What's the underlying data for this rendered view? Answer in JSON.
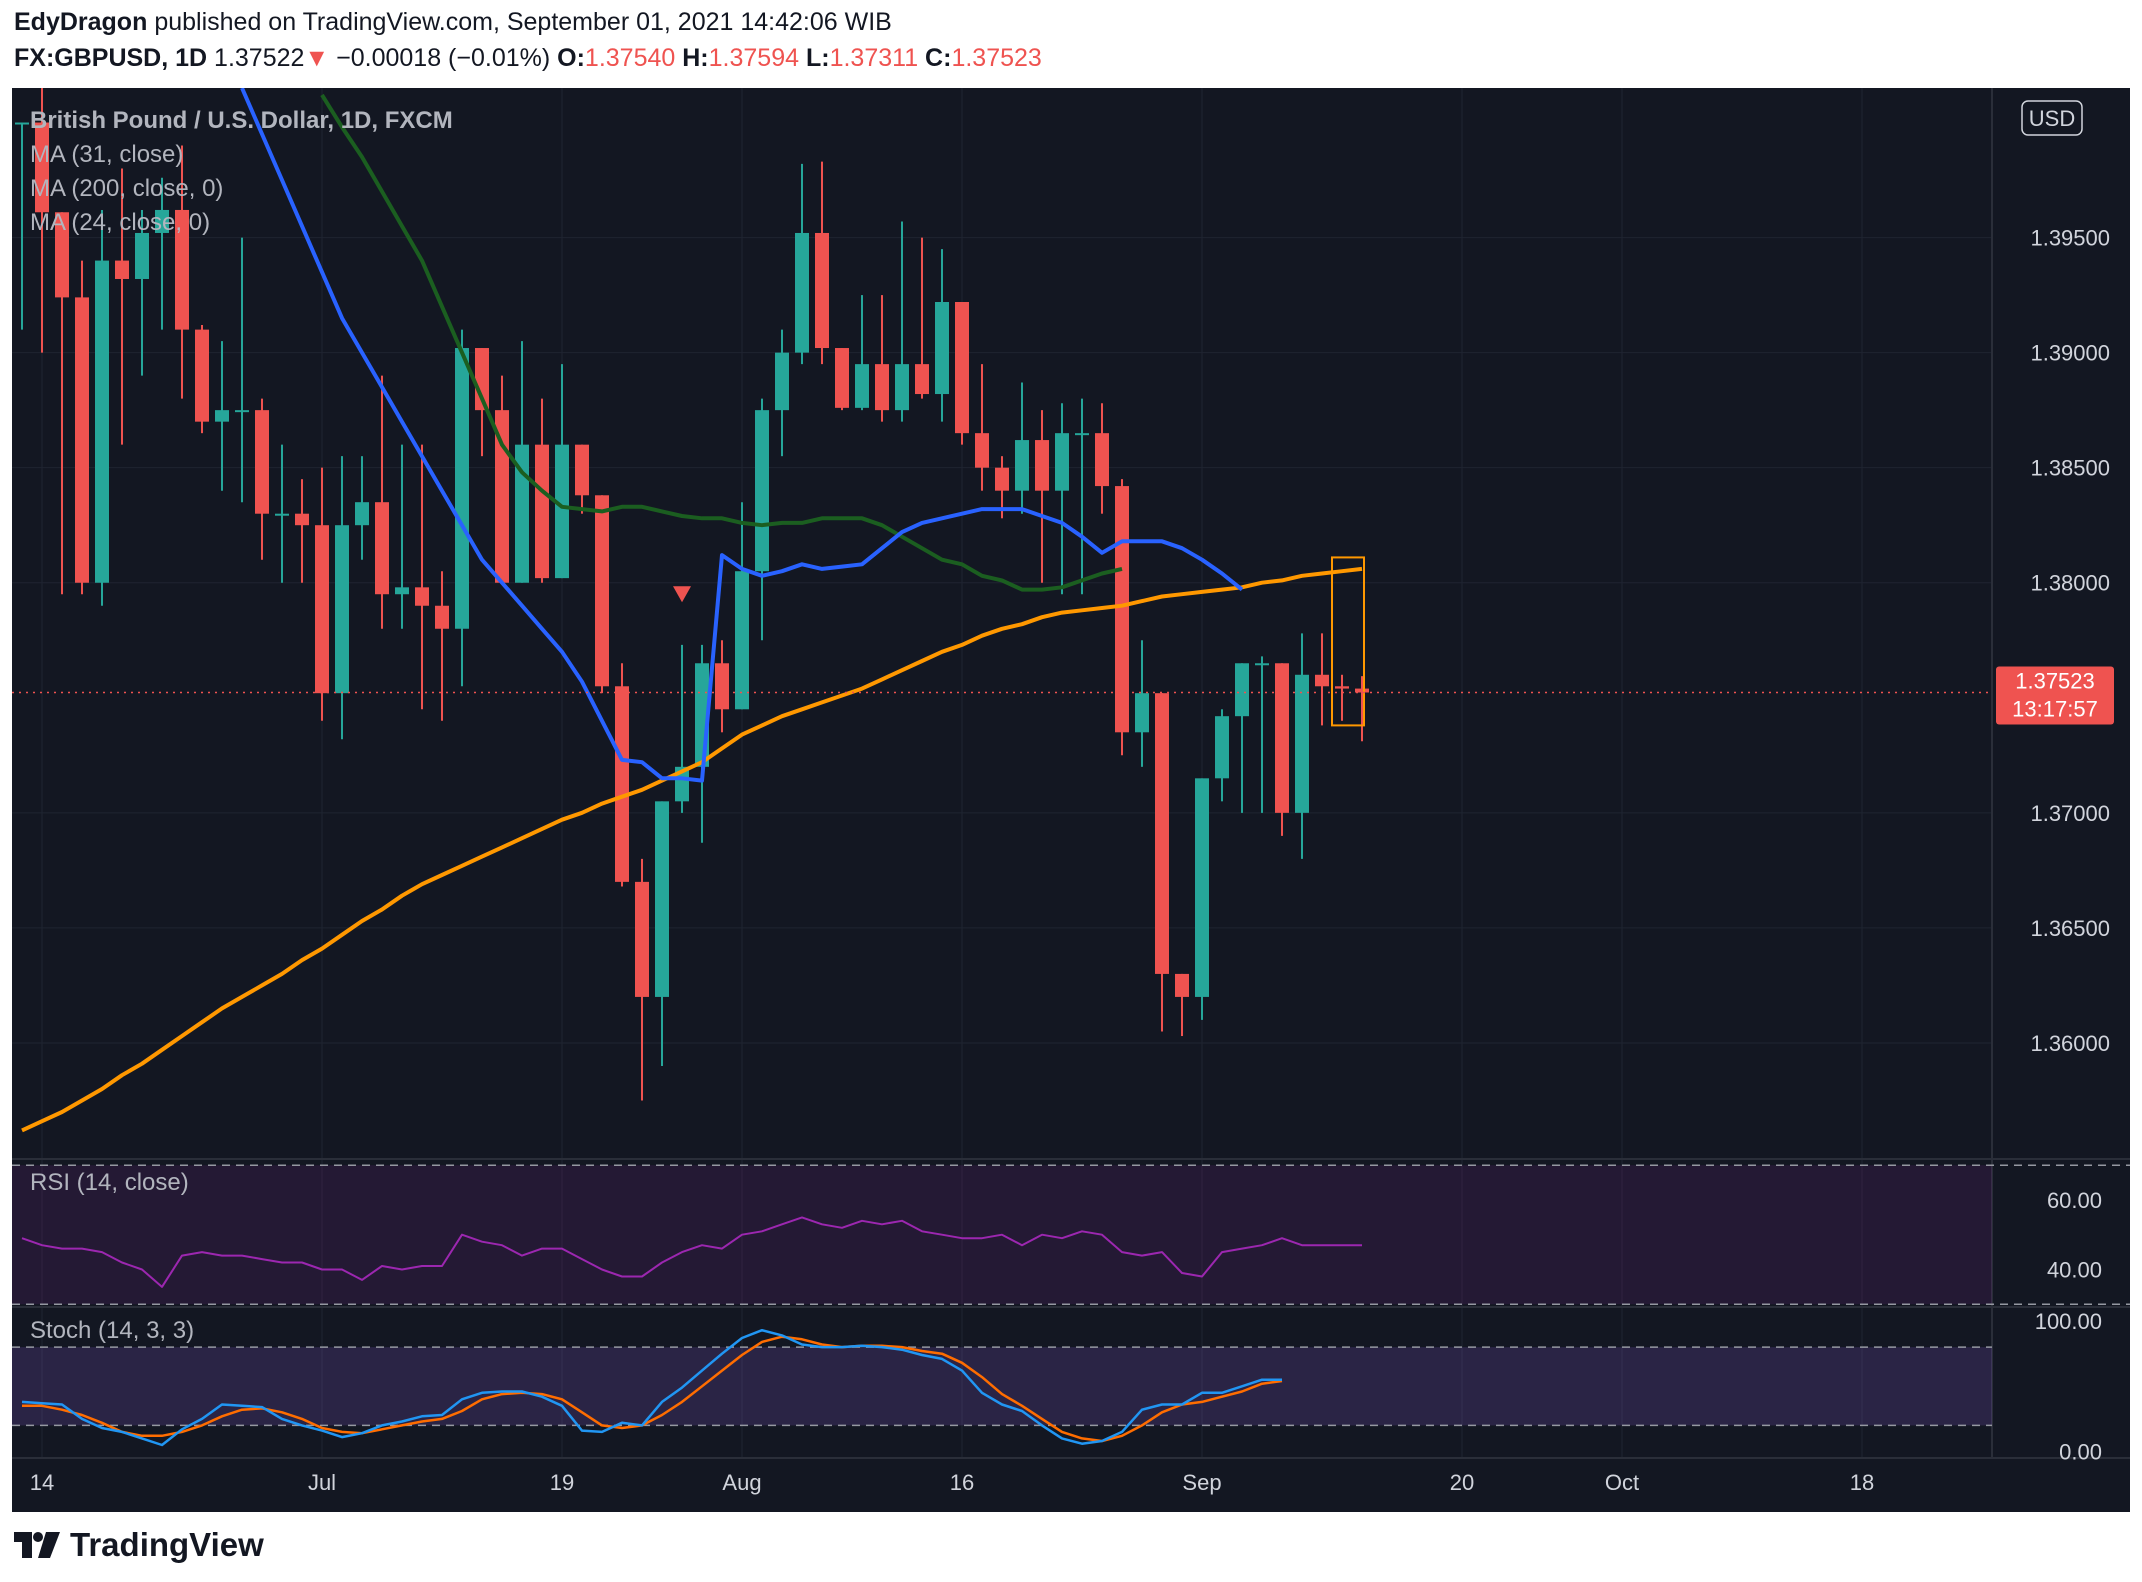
{
  "header": {
    "author": "EdyDragon",
    "published_text": "published on TradingView.com, September 01, 2021 14:42:06 WIB",
    "symbol": "FX:GBPUSD, 1D",
    "last_price": "1.37522",
    "change_arrow": "▼",
    "change": "−0.00018 (−0.01%)",
    "o_label": "O:",
    "o_value": "1.37540",
    "h_label": "H:",
    "h_value": "1.37594",
    "l_label": "L:",
    "l_value": "1.37311",
    "c_label": "C:",
    "c_value": "1.37523"
  },
  "colors": {
    "background": "#131722",
    "up": "#26a69a",
    "down": "#ef5350",
    "ma_blue": "#2962ff",
    "ma_green": "#1b5e20",
    "ma_orange": "#ff9800",
    "rsi": "#9c27b0",
    "stoch_k": "#2196f3",
    "stoch_d": "#ff6d00"
  },
  "footer": {
    "brand": "TradingView"
  },
  "chart_data": [
    {
      "type": "candlestick",
      "legend": [
        "British Pound / U.S. Dollar, 1D, FXCM",
        "MA (31, close)",
        "MA (200, close, 0)",
        "MA (24, close, 0)"
      ],
      "currency_label": "USD",
      "ylim": [
        1.355,
        1.4015
      ],
      "yticks": [
        "1.39500",
        "1.39000",
        "1.38500",
        "1.38000",
        "1.37000",
        "1.36500",
        "1.36000"
      ],
      "x_tick_labels": [
        "14",
        "Jul",
        "19",
        "Aug",
        "16",
        "Sep",
        "20",
        "Oct",
        "18"
      ],
      "x_tick_bar_index": [
        1,
        15,
        27,
        36,
        47,
        59,
        72,
        80,
        92
      ],
      "x_range_bars": [
        -0.5,
        98.5
      ],
      "last_price_label": "1.37523",
      "countdown": "13:17:57",
      "candles": [
        {
          "o": 1.4,
          "h": 1.4,
          "l": 1.391,
          "c": 1.4
        },
        {
          "o": 1.4,
          "h": 1.402,
          "l": 1.39,
          "c": 1.3961
        },
        {
          "o": 1.3961,
          "h": 1.3961,
          "l": 1.3795,
          "c": 1.3924
        },
        {
          "o": 1.3924,
          "h": 1.394,
          "l": 1.3795,
          "c": 1.38
        },
        {
          "o": 1.38,
          "h": 1.3962,
          "l": 1.379,
          "c": 1.394
        },
        {
          "o": 1.394,
          "h": 1.398,
          "l": 1.386,
          "c": 1.3932
        },
        {
          "o": 1.3932,
          "h": 1.3962,
          "l": 1.389,
          "c": 1.3952
        },
        {
          "o": 1.3952,
          "h": 1.3976,
          "l": 1.391,
          "c": 1.3962
        },
        {
          "o": 1.3962,
          "h": 1.399,
          "l": 1.388,
          "c": 1.391
        },
        {
          "o": 1.391,
          "h": 1.3912,
          "l": 1.3865,
          "c": 1.387
        },
        {
          "o": 1.387,
          "h": 1.3905,
          "l": 1.384,
          "c": 1.3875
        },
        {
          "o": 1.3875,
          "h": 1.395,
          "l": 1.3835,
          "c": 1.3875
        },
        {
          "o": 1.3875,
          "h": 1.388,
          "l": 1.381,
          "c": 1.383
        },
        {
          "o": 1.383,
          "h": 1.386,
          "l": 1.38,
          "c": 1.383
        },
        {
          "o": 1.383,
          "h": 1.3845,
          "l": 1.38,
          "c": 1.3825
        },
        {
          "o": 1.3825,
          "h": 1.385,
          "l": 1.374,
          "c": 1.3752
        },
        {
          "o": 1.3752,
          "h": 1.3855,
          "l": 1.3732,
          "c": 1.3825
        },
        {
          "o": 1.3825,
          "h": 1.3855,
          "l": 1.381,
          "c": 1.3835
        },
        {
          "o": 1.3835,
          "h": 1.389,
          "l": 1.378,
          "c": 1.3795
        },
        {
          "o": 1.3795,
          "h": 1.386,
          "l": 1.378,
          "c": 1.3798
        },
        {
          "o": 1.3798,
          "h": 1.386,
          "l": 1.3745,
          "c": 1.379
        },
        {
          "o": 1.379,
          "h": 1.3805,
          "l": 1.374,
          "c": 1.378
        },
        {
          "o": 1.378,
          "h": 1.391,
          "l": 1.3755,
          "c": 1.3902
        },
        {
          "o": 1.3902,
          "h": 1.3902,
          "l": 1.3855,
          "c": 1.3875
        },
        {
          "o": 1.3875,
          "h": 1.389,
          "l": 1.38,
          "c": 1.38
        },
        {
          "o": 1.38,
          "h": 1.3905,
          "l": 1.38,
          "c": 1.386
        },
        {
          "o": 1.386,
          "h": 1.388,
          "l": 1.38,
          "c": 1.3802
        },
        {
          "o": 1.3802,
          "h": 1.3895,
          "l": 1.3802,
          "c": 1.386
        },
        {
          "o": 1.386,
          "h": 1.386,
          "l": 1.383,
          "c": 1.3838
        },
        {
          "o": 1.3838,
          "h": 1.3838,
          "l": 1.3752,
          "c": 1.3755
        },
        {
          "o": 1.3755,
          "h": 1.3765,
          "l": 1.3668,
          "c": 1.367
        },
        {
          "o": 1.367,
          "h": 1.368,
          "l": 1.3575,
          "c": 1.362
        },
        {
          "o": 1.362,
          "h": 1.3705,
          "l": 1.359,
          "c": 1.3705
        },
        {
          "o": 1.3705,
          "h": 1.3773,
          "l": 1.37,
          "c": 1.372
        },
        {
          "o": 1.372,
          "h": 1.3773,
          "l": 1.3687,
          "c": 1.3765
        },
        {
          "o": 1.3765,
          "h": 1.3775,
          "l": 1.3735,
          "c": 1.3745
        },
        {
          "o": 1.3745,
          "h": 1.3835,
          "l": 1.3745,
          "c": 1.3805
        },
        {
          "o": 1.3805,
          "h": 1.388,
          "l": 1.3775,
          "c": 1.3875
        },
        {
          "o": 1.3875,
          "h": 1.391,
          "l": 1.3855,
          "c": 1.39
        },
        {
          "o": 1.39,
          "h": 1.3982,
          "l": 1.3895,
          "c": 1.3952
        },
        {
          "o": 1.3952,
          "h": 1.3983,
          "l": 1.3895,
          "c": 1.3902
        },
        {
          "o": 1.3902,
          "h": 1.3902,
          "l": 1.3875,
          "c": 1.3876
        },
        {
          "o": 1.3876,
          "h": 1.3925,
          "l": 1.3875,
          "c": 1.3895
        },
        {
          "o": 1.3895,
          "h": 1.3925,
          "l": 1.387,
          "c": 1.3875
        },
        {
          "o": 1.3875,
          "h": 1.3957,
          "l": 1.387,
          "c": 1.3895
        },
        {
          "o": 1.3895,
          "h": 1.395,
          "l": 1.388,
          "c": 1.3882
        },
        {
          "o": 1.3882,
          "h": 1.3945,
          "l": 1.387,
          "c": 1.3922
        },
        {
          "o": 1.3922,
          "h": 1.3922,
          "l": 1.386,
          "c": 1.3865
        },
        {
          "o": 1.3865,
          "h": 1.3895,
          "l": 1.384,
          "c": 1.385
        },
        {
          "o": 1.385,
          "h": 1.3855,
          "l": 1.3828,
          "c": 1.384
        },
        {
          "o": 1.384,
          "h": 1.3887,
          "l": 1.383,
          "c": 1.3862
        },
        {
          "o": 1.3862,
          "h": 1.3875,
          "l": 1.38,
          "c": 1.384
        },
        {
          "o": 1.384,
          "h": 1.3878,
          "l": 1.3795,
          "c": 1.3865
        },
        {
          "o": 1.3865,
          "h": 1.388,
          "l": 1.3795,
          "c": 1.3865
        },
        {
          "o": 1.3865,
          "h": 1.3878,
          "l": 1.383,
          "c": 1.3842
        },
        {
          "o": 1.3842,
          "h": 1.3845,
          "l": 1.3725,
          "c": 1.3735
        },
        {
          "o": 1.3735,
          "h": 1.3775,
          "l": 1.372,
          "c": 1.3752
        },
        {
          "o": 1.3752,
          "h": 1.3752,
          "l": 1.3605,
          "c": 1.363
        },
        {
          "o": 1.363,
          "h": 1.363,
          "l": 1.3603,
          "c": 1.362
        },
        {
          "o": 1.362,
          "h": 1.3715,
          "l": 1.361,
          "c": 1.3715
        },
        {
          "o": 1.3715,
          "h": 1.3745,
          "l": 1.3705,
          "c": 1.3742
        },
        {
          "o": 1.3742,
          "h": 1.3765,
          "l": 1.37,
          "c": 1.3765
        },
        {
          "o": 1.3765,
          "h": 1.3768,
          "l": 1.37,
          "c": 1.3765
        },
        {
          "o": 1.3765,
          "h": 1.3765,
          "l": 1.369,
          "c": 1.37
        },
        {
          "o": 1.37,
          "h": 1.3778,
          "l": 1.368,
          "c": 1.376
        },
        {
          "o": 1.376,
          "h": 1.3778,
          "l": 1.3738,
          "c": 1.3755
        },
        {
          "o": 1.3755,
          "h": 1.376,
          "l": 1.374,
          "c": 1.3754
        },
        {
          "o": 1.3754,
          "h": 1.37594,
          "l": 1.37311,
          "c": 1.37523
        }
      ],
      "ma_31": {
        "start_index": 11,
        "values": [
          1.4015,
          1.3995,
          1.3975,
          1.3955,
          1.3935,
          1.3915,
          1.39,
          1.3885,
          1.387,
          1.3855,
          1.384,
          1.3825,
          1.381,
          1.38,
          1.379,
          1.378,
          1.377,
          1.3757,
          1.374,
          1.3723,
          1.3722,
          1.3715,
          1.3715,
          1.3714,
          1.3812,
          1.3806,
          1.3803,
          1.3805,
          1.3808,
          1.3806,
          1.3807,
          1.3808,
          1.3815,
          1.3822,
          1.3826,
          1.3828,
          1.383,
          1.3832,
          1.3832,
          1.3832,
          1.3829,
          1.3826,
          1.382,
          1.3813,
          1.3818,
          1.3818,
          1.3818,
          1.3815,
          1.381,
          1.3804,
          1.3797
        ]
      },
      "ma_24": {
        "start_index": 15,
        "values": [
          1.4012,
          1.3998,
          1.3985,
          1.397,
          1.3955,
          1.394,
          1.392,
          1.39,
          1.388,
          1.386,
          1.3848,
          1.384,
          1.3833,
          1.3832,
          1.3831,
          1.3833,
          1.3833,
          1.3831,
          1.3829,
          1.3828,
          1.3828,
          1.3826,
          1.3825,
          1.3826,
          1.3826,
          1.3828,
          1.3828,
          1.3828,
          1.3825,
          1.382,
          1.3815,
          1.381,
          1.3808,
          1.3803,
          1.3801,
          1.3797,
          1.3797,
          1.3798,
          1.3801,
          1.3804,
          1.3806
        ]
      },
      "ma_200": [
        1.3562,
        1.3566,
        1.357,
        1.3575,
        1.358,
        1.3586,
        1.3591,
        1.3597,
        1.3603,
        1.3609,
        1.3615,
        1.362,
        1.3625,
        1.363,
        1.3636,
        1.3641,
        1.3647,
        1.3653,
        1.3658,
        1.3664,
        1.3669,
        1.3673,
        1.3677,
        1.3681,
        1.3685,
        1.3689,
        1.3693,
        1.3697,
        1.37,
        1.3704,
        1.3707,
        1.371,
        1.3714,
        1.3718,
        1.3722,
        1.3728,
        1.3734,
        1.3738,
        1.3742,
        1.3745,
        1.3748,
        1.3751,
        1.3754,
        1.3758,
        1.3762,
        1.3766,
        1.377,
        1.3773,
        1.3777,
        1.378,
        1.3782,
        1.3785,
        1.3787,
        1.3788,
        1.3789,
        1.379,
        1.3792,
        1.3794,
        1.3795,
        1.3796,
        1.3797,
        1.3798,
        1.38,
        1.3801,
        1.3803,
        1.3804,
        1.3805,
        1.3806
      ],
      "signal_marker": {
        "bar_index": 33,
        "price": 1.3795
      },
      "range_box": {
        "bar_index_start": 65.5,
        "bar_index_end": 67.1,
        "top": 1.3811,
        "bottom": 1.3738
      }
    },
    {
      "type": "line",
      "title": "RSI (14, close)",
      "ylim": [
        29.5,
        71.5
      ],
      "yticks": [
        "60.00",
        "40.00"
      ],
      "band": [
        70,
        30
      ],
      "values": [
        49,
        47,
        46,
        46,
        45,
        42,
        40,
        35,
        44,
        45,
        44,
        44,
        43,
        42,
        42,
        40,
        40,
        37,
        41,
        40,
        41,
        41,
        50,
        48,
        47,
        44,
        46,
        46,
        43,
        40,
        38,
        38,
        42,
        45,
        47,
        46,
        50,
        51,
        53,
        55,
        53,
        52,
        54,
        53,
        54,
        51,
        50,
        49,
        49,
        50,
        47,
        50,
        49,
        51,
        50,
        45,
        44,
        45,
        39,
        38,
        45,
        46,
        47,
        49,
        47,
        47,
        47,
        47
      ]
    },
    {
      "type": "line",
      "title": "Stoch (14, 3, 3)",
      "ylim": [
        -5,
        110
      ],
      "yticks": [
        "100.00",
        "0.00"
      ],
      "band": [
        80,
        20
      ],
      "series": [
        {
          "values": [
            38,
            37,
            36,
            25,
            18,
            15,
            10,
            5,
            17,
            25,
            36,
            35,
            34,
            25,
            20,
            16,
            11,
            14,
            20,
            23,
            27,
            28,
            40,
            45,
            46,
            46,
            42,
            35,
            16,
            15,
            22,
            20,
            38,
            49,
            62,
            75,
            87,
            93,
            89,
            82,
            80,
            80,
            81,
            80,
            78,
            74,
            71,
            62,
            45,
            36,
            31,
            20,
            10,
            6,
            8,
            15,
            32,
            36,
            36,
            45,
            45,
            50,
            55,
            55
          ]
        },
        {
          "values": [
            35,
            35,
            32,
            28,
            22,
            15,
            12,
            12,
            15,
            20,
            27,
            32,
            33,
            30,
            25,
            18,
            15,
            14,
            17,
            20,
            23,
            25,
            31,
            40,
            44,
            45,
            44,
            40,
            30,
            20,
            18,
            20,
            28,
            38,
            50,
            62,
            74,
            84,
            88,
            86,
            82,
            80,
            81,
            81,
            80,
            77,
            75,
            68,
            57,
            44,
            35,
            25,
            15,
            10,
            8,
            12,
            20,
            30,
            36,
            38,
            42,
            46,
            52,
            54
          ]
        }
      ]
    }
  ]
}
